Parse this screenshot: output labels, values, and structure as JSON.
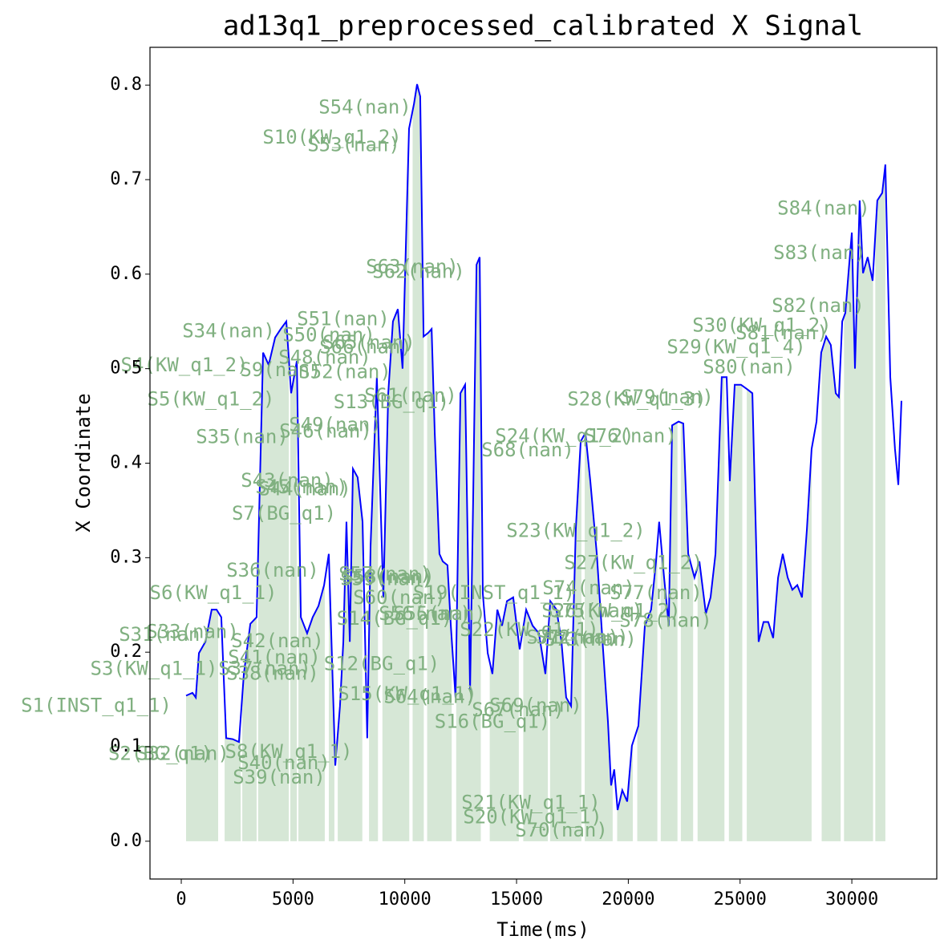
{
  "chart_data": {
    "type": "line",
    "title": "ad13q1_preprocessed_calibrated X Signal",
    "xlabel": "Time(ms)",
    "ylabel": "X Coordinate",
    "xlim": [
      -1400,
      33800
    ],
    "ylim": [
      -0.04,
      0.84
    ],
    "xticks": [
      0,
      5000,
      10000,
      15000,
      20000,
      25000,
      30000
    ],
    "yticks": [
      {
        "value": 0,
        "label": "0.0"
      },
      0.1,
      0.2,
      0.3,
      0.4,
      0.5,
      0.6,
      0.7,
      0.8
    ],
    "color": "#0000ff",
    "fill_color": "#d6e7d6",
    "x": [
      215,
      500,
      650,
      790,
      1080,
      1360,
      1580,
      1790,
      2010,
      2300,
      2580,
      2800,
      3090,
      3370,
      3660,
      3910,
      4200,
      4450,
      4700,
      4915,
      5170,
      5350,
      5630,
      5880,
      6140,
      6390,
      6600,
      6890,
      7100,
      7250,
      7390,
      7540,
      7680,
      7890,
      8110,
      8320,
      8470,
      8750,
      9040,
      9260,
      9470,
      9690,
      9900,
      10190,
      10410,
      10550,
      10690,
      10840,
      11050,
      11200,
      11340,
      11550,
      11700,
      11910,
      12060,
      12270,
      12490,
      12700,
      12920,
      13060,
      13210,
      13350,
      13490,
      13710,
      13920,
      14140,
      14350,
      14570,
      14850,
      15140,
      15430,
      15720,
      16000,
      16290,
      16510,
      16790,
      17010,
      17220,
      17440,
      17650,
      17870,
      18080,
      18300,
      18590,
      18870,
      19090,
      19230,
      19370,
      19520,
      19730,
      19950,
      20160,
      20450,
      20740,
      21020,
      21240,
      21380,
      21600,
      21810,
      21960,
      22250,
      22460,
      22680,
      22960,
      23180,
      23470,
      23680,
      23900,
      24180,
      24400,
      24540,
      24760,
      25040,
      25330,
      25550,
      25830,
      26050,
      26260,
      26480,
      26700,
      26910,
      27130,
      27340,
      27560,
      27770,
      27990,
      28200,
      28420,
      28630,
      28850,
      29060,
      29280,
      29420,
      29570,
      29710,
      29850,
      30000,
      30140,
      30350,
      30500,
      30710,
      30930,
      31140,
      31360,
      31500,
      31720,
      31930,
      32080,
      32220
    ],
    "values": [
      0.154,
      0.157,
      0.152,
      0.199,
      0.211,
      0.245,
      0.245,
      0.237,
      0.109,
      0.108,
      0.105,
      0.177,
      0.23,
      0.237,
      0.517,
      0.504,
      0.533,
      0.542,
      0.55,
      0.474,
      0.508,
      0.237,
      0.22,
      0.237,
      0.249,
      0.271,
      0.304,
      0.08,
      0.143,
      0.211,
      0.338,
      0.211,
      0.394,
      0.385,
      0.338,
      0.109,
      0.313,
      0.491,
      0.258,
      0.474,
      0.55,
      0.563,
      0.5,
      0.754,
      0.78,
      0.801,
      0.788,
      0.534,
      0.538,
      0.542,
      0.432,
      0.304,
      0.296,
      0.292,
      0.228,
      0.152,
      0.474,
      0.483,
      0.16,
      0.364,
      0.61,
      0.618,
      0.262,
      0.199,
      0.177,
      0.245,
      0.228,
      0.254,
      0.258,
      0.203,
      0.245,
      0.228,
      0.22,
      0.177,
      0.254,
      0.245,
      0.211,
      0.152,
      0.143,
      0.33,
      0.423,
      0.432,
      0.381,
      0.304,
      0.203,
      0.126,
      0.059,
      0.076,
      0.033,
      0.054,
      0.042,
      0.101,
      0.122,
      0.228,
      0.245,
      0.296,
      0.338,
      0.279,
      0.228,
      0.44,
      0.444,
      0.442,
      0.304,
      0.279,
      0.296,
      0.241,
      0.258,
      0.304,
      0.491,
      0.491,
      0.381,
      0.483,
      0.483,
      0.478,
      0.474,
      0.211,
      0.232,
      0.232,
      0.215,
      0.279,
      0.304,
      0.279,
      0.266,
      0.271,
      0.258,
      0.33,
      0.415,
      0.444,
      0.517,
      0.534,
      0.525,
      0.474,
      0.47,
      0.55,
      0.559,
      0.601,
      0.644,
      0.5,
      0.678,
      0.601,
      0.618,
      0.593,
      0.678,
      0.686,
      0.716,
      0.491,
      0.415,
      0.377,
      0.466
    ],
    "fill_spans": [
      [
        215,
        1650
      ],
      [
        1940,
        2660
      ],
      [
        2730,
        3370
      ],
      [
        3440,
        4810
      ],
      [
        4880,
        5170
      ],
      [
        5240,
        6420
      ],
      [
        6600,
        6850
      ],
      [
        7000,
        8100
      ],
      [
        8400,
        8800
      ],
      [
        9000,
        10200
      ],
      [
        10350,
        10850
      ],
      [
        11000,
        12100
      ],
      [
        12300,
        13400
      ],
      [
        13800,
        15100
      ],
      [
        15300,
        16400
      ],
      [
        16500,
        17900
      ],
      [
        18050,
        19300
      ],
      [
        19500,
        20200
      ],
      [
        20400,
        21300
      ],
      [
        21450,
        22200
      ],
      [
        22350,
        22900
      ],
      [
        23100,
        24300
      ],
      [
        24500,
        25100
      ],
      [
        25300,
        28200
      ],
      [
        28650,
        29500
      ],
      [
        29650,
        30950
      ],
      [
        31050,
        31500
      ]
    ],
    "annotation_color": "#80b080",
    "annotations": [
      {
        "text": "S54(nan)",
        "x": 8217,
        "y": 0.776
      },
      {
        "text": "S10(KW_q1_2)",
        "x": 6746,
        "y": 0.744
      },
      {
        "text": "S53(nan)",
        "x": 7714,
        "y": 0.736
      },
      {
        "text": "S84(nan)",
        "x": 28740,
        "y": 0.669
      },
      {
        "text": "S83(nan)",
        "x": 28560,
        "y": 0.622
      },
      {
        "text": "S63(nan)",
        "x": 10334,
        "y": 0.607
      },
      {
        "text": "S62(nan)",
        "x": 10621,
        "y": 0.602
      },
      {
        "text": "S82(nan)",
        "x": 28490,
        "y": 0.566
      },
      {
        "text": "S51(nan)",
        "x": 7248,
        "y": 0.552
      },
      {
        "text": "S30(KW_q1_2)",
        "x": 25978,
        "y": 0.545
      },
      {
        "text": "S34(nan)",
        "x": 2117,
        "y": 0.539
      },
      {
        "text": "S81(nan)",
        "x": 26874,
        "y": 0.537
      },
      {
        "text": "S50(nan)",
        "x": 6602,
        "y": 0.535
      },
      {
        "text": "S65(nan)",
        "x": 8396,
        "y": 0.527
      },
      {
        "text": "S66(nan)",
        "x": 8253,
        "y": 0.522
      },
      {
        "text": "S29(KW_q1_4)",
        "x": 24830,
        "y": 0.522
      },
      {
        "text": "S48(nan)",
        "x": 6423,
        "y": 0.511
      },
      {
        "text": "S4(KW_q1_2)",
        "x": 144,
        "y": 0.503
      },
      {
        "text": "S80(nan)",
        "x": 25404,
        "y": 0.501
      },
      {
        "text": "S9(nan)",
        "x": 4449,
        "y": 0.498
      },
      {
        "text": "S52(nan)",
        "x": 7320,
        "y": 0.496
      },
      {
        "text": "S5(KW_q1_2)",
        "x": 1328,
        "y": 0.467
      },
      {
        "text": "S61(nan)",
        "x": 10262,
        "y": 0.471
      },
      {
        "text": "S13(BG_q1)",
        "x": 9401,
        "y": 0.464
      },
      {
        "text": "S28(KW_q1_3)",
        "x": 20381,
        "y": 0.467
      },
      {
        "text": "S79(nan)",
        "x": 21744,
        "y": 0.469
      },
      {
        "text": "S46(nan)",
        "x": 6459,
        "y": 0.433
      },
      {
        "text": "S49(nan)",
        "x": 6889,
        "y": 0.44
      },
      {
        "text": "S35(nan)",
        "x": 2727,
        "y": 0.427
      },
      {
        "text": "S24(KW_q1_2)",
        "x": 17151,
        "y": 0.428
      },
      {
        "text": "S76(nan)",
        "x": 20093,
        "y": 0.428
      },
      {
        "text": "S68(nan)",
        "x": 15500,
        "y": 0.413
      },
      {
        "text": "S43(nan)",
        "x": 4736,
        "y": 0.381
      },
      {
        "text": "S45(nan)",
        "x": 5382,
        "y": 0.374
      },
      {
        "text": "S44(nan)",
        "x": 5526,
        "y": 0.372
      },
      {
        "text": "S7(BG_q1)",
        "x": 4593,
        "y": 0.346
      },
      {
        "text": "S23(KW_q1_2)",
        "x": 17653,
        "y": 0.328
      },
      {
        "text": "S27(KW_q1_2)",
        "x": 20237,
        "y": 0.294
      },
      {
        "text": "S36(nan)",
        "x": 4090,
        "y": 0.286
      },
      {
        "text": "S57(nan)",
        "x": 9114,
        "y": 0.282
      },
      {
        "text": "S58(nan)",
        "x": 9257,
        "y": 0.279
      },
      {
        "text": "S59(nan)",
        "x": 9185,
        "y": 0.277
      },
      {
        "text": "S6(KW_q1_1)",
        "x": 1435,
        "y": 0.262
      },
      {
        "text": "S74(nan)",
        "x": 18227,
        "y": 0.267
      },
      {
        "text": "S77(nan)",
        "x": 21241,
        "y": 0.262
      },
      {
        "text": "S19(INST_q1_1)",
        "x": 13993,
        "y": 0.262
      },
      {
        "text": "S60(nan)",
        "x": 9760,
        "y": 0.257
      },
      {
        "text": "S78(nan)",
        "x": 21672,
        "y": 0.233
      },
      {
        "text": "S14(BG_q1)",
        "x": 9544,
        "y": 0.235
      },
      {
        "text": "S56(nan)",
        "x": 10908,
        "y": 0.24
      },
      {
        "text": "S55(nan)",
        "x": 11554,
        "y": 0.24
      },
      {
        "text": "S31(nan)",
        "x": -718,
        "y": 0.218
      },
      {
        "text": "S33(nan)",
        "x": 502,
        "y": 0.221
      },
      {
        "text": "S22(KW_q1_1)",
        "x": 15572,
        "y": 0.223
      },
      {
        "text": "S26(KW_q1_2)",
        "x": 19232,
        "y": 0.243
      },
      {
        "text": "S75(nan)",
        "x": 18586,
        "y": 0.243
      },
      {
        "text": "S71(nan)",
        "x": 17510,
        "y": 0.215
      },
      {
        "text": "S72(nan)",
        "x": 17940,
        "y": 0.215
      },
      {
        "text": "S73(nan)",
        "x": 18299,
        "y": 0.213
      },
      {
        "text": "S42(nan)",
        "x": 4306,
        "y": 0.211
      },
      {
        "text": "S41(nan)",
        "x": 4162,
        "y": 0.194
      },
      {
        "text": "S3(KW_q1_1)",
        "x": -1220,
        "y": 0.182
      },
      {
        "text": "S37(nan)",
        "x": 3732,
        "y": 0.182
      },
      {
        "text": "S38(nan)",
        "x": 4090,
        "y": 0.177
      },
      {
        "text": "S12(BG_q1)",
        "x": 8970,
        "y": 0.187
      },
      {
        "text": "S15(KW_q1_1)",
        "x": 10118,
        "y": 0.155
      },
      {
        "text": "S64(nan)",
        "x": 11123,
        "y": 0.152
      },
      {
        "text": "S69(nan)",
        "x": 15859,
        "y": 0.143
      },
      {
        "text": "S67(nan)",
        "x": 15070,
        "y": 0.138
      },
      {
        "text": "S16(BG_q1)",
        "x": 13922,
        "y": 0.126
      },
      {
        "text": "S1(INST_q1_1)",
        "x": -3803,
        "y": 0.143
      },
      {
        "text": "S2(BG_q1)",
        "x": -933,
        "y": 0.092
      },
      {
        "text": "S32(nan)",
        "x": 72,
        "y": 0.092
      },
      {
        "text": "S8(KW_q1_1)",
        "x": 4808,
        "y": 0.094
      },
      {
        "text": "S40(nan)",
        "x": 4593,
        "y": 0.082
      },
      {
        "text": "S39(nan)",
        "x": 4377,
        "y": 0.067
      },
      {
        "text": "S21(KW_q1_1)",
        "x": 15644,
        "y": 0.04
      },
      {
        "text": "S20(KW_q1_1)",
        "x": 15716,
        "y": 0.025
      },
      {
        "text": "S70(nan)",
        "x": 17008,
        "y": 0.011
      }
    ]
  }
}
